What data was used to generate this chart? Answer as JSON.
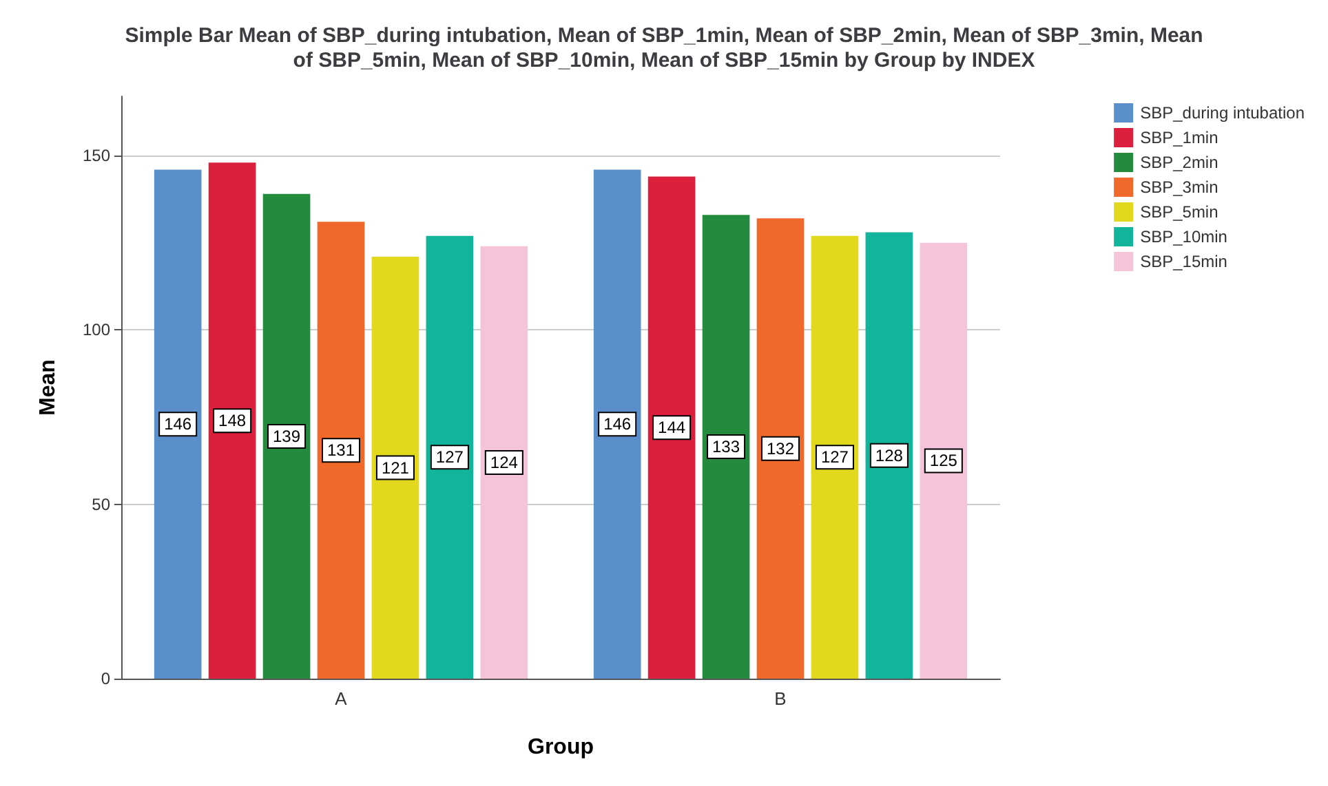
{
  "chart_data": {
    "type": "bar",
    "title": "Simple Bar Mean of SBP_during intubation, Mean of SBP_1min, Mean of SBP_2min, Mean of SBP_3min, Mean\nof SBP_5min, Mean of SBP_10min, Mean of SBP_15min by Group by INDEX",
    "xlabel": "Group",
    "ylabel": "Mean",
    "categories": [
      "A",
      "B"
    ],
    "series": [
      {
        "name": "SBP_during intubation",
        "color": "#5b8fcc",
        "values": [
          146,
          146
        ]
      },
      {
        "name": "SBP_1min",
        "color": "#dc1f3c",
        "values": [
          148,
          144
        ]
      },
      {
        "name": "SBP_2min",
        "color": "#238a3e",
        "values": [
          139,
          133
        ]
      },
      {
        "name": "SBP_3min",
        "color": "#f0682a",
        "values": [
          131,
          132
        ]
      },
      {
        "name": "SBP_5min",
        "color": "#e2d81e",
        "values": [
          121,
          127
        ]
      },
      {
        "name": "SBP_10min",
        "color": "#13b49c",
        "values": [
          127,
          128
        ]
      },
      {
        "name": "SBP_15min",
        "color": "#f6c4da",
        "values": [
          124,
          125
        ]
      }
    ],
    "ylim": [
      0,
      167
    ],
    "yticks": [
      0,
      50,
      100,
      150
    ],
    "grid": "y",
    "legend": "top right",
    "data_labels": true
  }
}
